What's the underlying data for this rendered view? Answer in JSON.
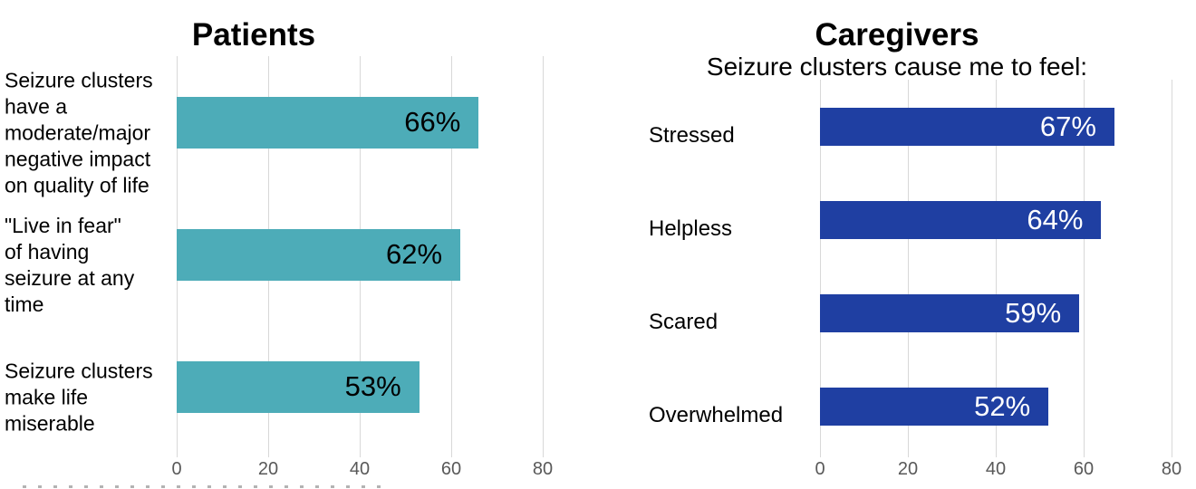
{
  "colors": {
    "teal_bar": "#4DACB8",
    "blue_bar": "#1F3FA2",
    "gridline": "#D8D8D8",
    "tick_text": "#595959",
    "left_value_text": "#000000",
    "right_value_text": "#FFFFFF"
  },
  "chart_data": [
    {
      "type": "bar",
      "orientation": "horizontal",
      "title": "Patients",
      "categories": [
        "Seizure clusters have a moderate/major negative impact on quality of life",
        "\"Live in fear\" of having seizure at any time",
        "Seizure clusters make life miserable"
      ],
      "category_lines": [
        [
          "Seizure clusters",
          "have a",
          "moderate/major",
          "negative impact",
          "on quality of life"
        ],
        [
          "\"Live in fear\"",
          "of having",
          "seizure at any",
          "time"
        ],
        [
          "Seizure clusters",
          "make life",
          "miserable"
        ]
      ],
      "values": [
        66,
        62,
        53
      ],
      "value_labels": [
        "66%",
        "62%",
        "53%"
      ],
      "bar_color": "#4DACB8",
      "value_label_color": "#000000",
      "xlim": [
        0,
        80
      ],
      "xticks": [
        0,
        20,
        40,
        60,
        80
      ],
      "xtick_labels": [
        "0",
        "20",
        "40",
        "60",
        "80"
      ],
      "grid": true,
      "legend": "none"
    },
    {
      "type": "bar",
      "orientation": "horizontal",
      "title": "Caregivers",
      "subtitle": "Seizure clusters cause me to feel:",
      "categories": [
        "Stressed",
        "Helpless",
        "Scared",
        "Overwhelmed"
      ],
      "category_lines": [
        [
          "Stressed"
        ],
        [
          "Helpless"
        ],
        [
          "Scared"
        ],
        [
          "Overwhelmed"
        ]
      ],
      "values": [
        67,
        64,
        59,
        52
      ],
      "value_labels": [
        "67%",
        "64%",
        "59%",
        "52%"
      ],
      "bar_color": "#1F3FA2",
      "value_label_color": "#FFFFFF",
      "xlim": [
        0,
        80
      ],
      "xticks": [
        0,
        20,
        40,
        60,
        80
      ],
      "xtick_labels": [
        "0",
        "20",
        "40",
        "60",
        "80"
      ],
      "grid": true,
      "legend": "none"
    }
  ]
}
